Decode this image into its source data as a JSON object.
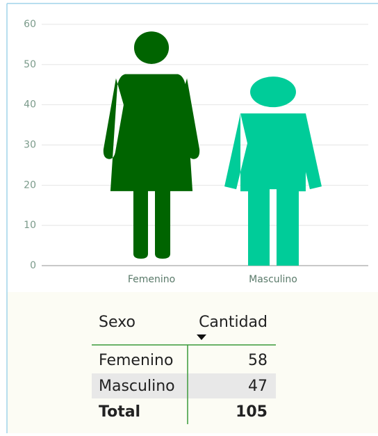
{
  "chart_data": {
    "type": "pictograph",
    "categories": [
      "Femenino",
      "Masculino"
    ],
    "values": [
      58,
      47
    ],
    "colors": [
      "#006400",
      "#00cc99"
    ],
    "ylim": [
      0,
      60
    ],
    "yticks": [
      0,
      10,
      20,
      30,
      40,
      50,
      60
    ],
    "grid": true
  },
  "table": {
    "columns": [
      "Sexo",
      "Cantidad"
    ],
    "rows": [
      [
        "Femenino",
        58
      ],
      [
        "Masculino",
        47
      ]
    ],
    "total": [
      "Total",
      105
    ]
  }
}
